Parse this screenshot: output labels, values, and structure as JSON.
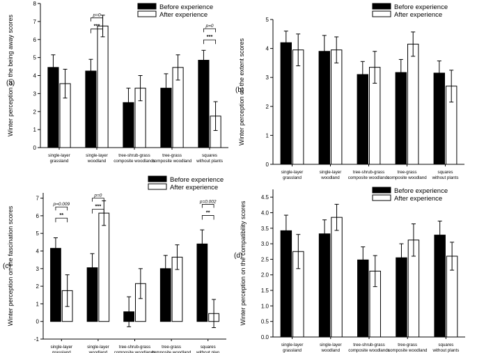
{
  "chart_data": [
    {
      "panel": "(a)",
      "type": "bar",
      "ylabel": "Winter perception on the being away scores",
      "ylim": [
        0,
        8
      ],
      "yticks": [
        "0",
        "1",
        "2",
        "3",
        "4",
        "5",
        "6",
        "7",
        "8"
      ],
      "tick_values": [
        0,
        1,
        2,
        3,
        4,
        5,
        6,
        7,
        8
      ],
      "categories": [
        [
          "single-layer",
          "grassland"
        ],
        [
          "single-layer",
          "woodland"
        ],
        [
          "tree-shrub-grass",
          "composite woodlands"
        ],
        [
          "tree-grass",
          "composite woodland"
        ],
        [
          "squares",
          "without plants"
        ]
      ],
      "legend": [
        "Before experience",
        "After experience"
      ],
      "series": [
        {
          "name": "Before experience",
          "color": "#000000",
          "values": [
            4.45,
            4.25,
            2.5,
            3.3,
            4.85
          ],
          "errors": [
            0.7,
            0.65,
            0.8,
            0.8,
            0.55
          ]
        },
        {
          "name": "After experience",
          "color": "#ffffff",
          "values": [
            3.55,
            6.75,
            3.3,
            4.45,
            1.75
          ],
          "errors": [
            0.8,
            0.6,
            0.7,
            0.7,
            0.8
          ]
        }
      ],
      "annotations": [
        {
          "category": 1,
          "stars": "***",
          "p": "p=0",
          "y": 7.2
        },
        {
          "category": 4,
          "stars": "***",
          "p": "p=0",
          "y": 6.6
        }
      ]
    },
    {
      "panel": "(b)",
      "type": "bar",
      "ylabel": "Winter perception on the extent scores",
      "ylim": [
        0,
        5
      ],
      "yticks": [
        "0",
        "1",
        "2",
        "3",
        "4",
        "5"
      ],
      "tick_values": [
        0,
        1,
        2,
        3,
        4,
        5
      ],
      "categories": [
        [
          "single-layer",
          "grassland"
        ],
        [
          "single-layer",
          "woodland"
        ],
        [
          "tree-shrub-grass",
          "composite woodlands"
        ],
        [
          "tree-grass",
          "composite woodland"
        ],
        [
          "squares",
          "without plants"
        ]
      ],
      "legend": [
        "Before experience",
        "After experience"
      ],
      "series": [
        {
          "name": "Before experience",
          "color": "#000000",
          "values": [
            4.2,
            3.9,
            3.1,
            3.17,
            3.15
          ],
          "errors": [
            0.4,
            0.55,
            0.45,
            0.45,
            0.42
          ]
        },
        {
          "name": "After experience",
          "color": "#ffffff",
          "values": [
            3.95,
            3.95,
            3.35,
            4.15,
            2.7
          ],
          "errors": [
            0.55,
            0.45,
            0.55,
            0.42,
            0.55
          ]
        }
      ],
      "annotations": []
    },
    {
      "panel": "(c)",
      "type": "bar",
      "ylabel": "Winter perception on the fascination scores",
      "ylim": [
        -1,
        7.3
      ],
      "yticks": [
        "-1",
        "0",
        "1",
        "2",
        "3",
        "4",
        "5",
        "6",
        "7"
      ],
      "tick_values": [
        -1,
        0,
        1,
        2,
        3,
        4,
        5,
        6,
        7
      ],
      "categories": [
        [
          "single-layer",
          "grassland"
        ],
        [
          "single-layer",
          "woodland"
        ],
        [
          "tree-shrub-grass",
          "composite woodlands"
        ],
        [
          "tree-grass",
          "composite woodland"
        ],
        [
          "squares",
          "without plan"
        ]
      ],
      "legend": [
        "Before experience",
        "After experience"
      ],
      "series": [
        {
          "name": "Before experience",
          "color": "#000000",
          "values": [
            4.15,
            3.05,
            0.55,
            3.0,
            4.4
          ],
          "errors": [
            0.6,
            0.8,
            0.85,
            0.75,
            0.8
          ]
        },
        {
          "name": "After experience",
          "color": "#ffffff",
          "values": [
            1.75,
            6.15,
            2.15,
            3.65,
            0.45
          ],
          "errors": [
            0.9,
            0.7,
            0.85,
            0.7,
            0.8
          ]
        }
      ],
      "annotations": [
        {
          "category": 0,
          "stars": "**",
          "p": "p=0.009",
          "y": 6.5
        },
        {
          "category": 1,
          "stars": "***",
          "p": "p=0",
          "y": 7.0
        },
        {
          "category": 4,
          "stars": "**",
          "p": "p=0.002",
          "y": 6.65
        }
      ]
    },
    {
      "panel": "(d)",
      "type": "bar",
      "ylabel": "Winter perception on the compatibility scores",
      "ylim": [
        0,
        4.75
      ],
      "yticks": [
        "0.0",
        "0.5",
        "1.0",
        "1.5",
        "2.0",
        "2.5",
        "3.0",
        "3.5",
        "4.0",
        "4.5"
      ],
      "tick_values": [
        0,
        0.5,
        1,
        1.5,
        2,
        2.5,
        3,
        3.5,
        4,
        4.5
      ],
      "categories": [
        [
          "single-layer",
          "grassland"
        ],
        [
          "single-layer",
          "woodland"
        ],
        [
          "tree-shrub-grass",
          "composite woodlands"
        ],
        [
          "tree-grass",
          "composite woodland"
        ],
        [
          "squares",
          "without plants"
        ]
      ],
      "legend": [
        "Before experience",
        "After experience"
      ],
      "series": [
        {
          "name": "Before experience",
          "color": "#000000",
          "values": [
            3.42,
            3.32,
            2.48,
            2.55,
            3.28
          ],
          "errors": [
            0.5,
            0.45,
            0.42,
            0.45,
            0.45
          ]
        },
        {
          "name": "After experience",
          "color": "#ffffff",
          "values": [
            2.75,
            3.85,
            2.12,
            3.12,
            2.6
          ],
          "errors": [
            0.55,
            0.42,
            0.5,
            0.52,
            0.45
          ]
        }
      ],
      "annotations": []
    }
  ]
}
